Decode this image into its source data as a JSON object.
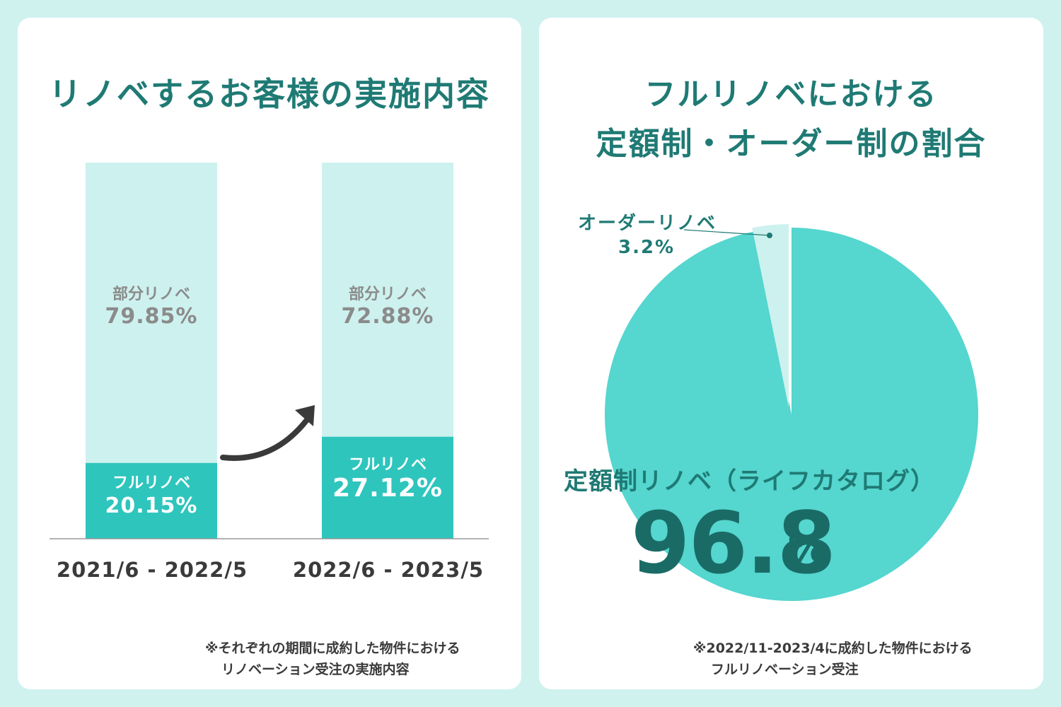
{
  "left": {
    "title": "リノベするお客様の実施内容",
    "note_line1": "※それぞれの期間に成約した物件における",
    "note_line2": "リノベーション受注の実施内容"
  },
  "right": {
    "title_line1": "フルリノベにおける",
    "title_line2": "定額制・オーダー制の割合",
    "note_line1": "※2022/11-2023/4に成約した物件における",
    "note_line2": "フルリノベーション受注"
  },
  "colors": {
    "partial": "#cdf1ee",
    "full": "#2ec5bd",
    "pie_main": "#55d6cf",
    "pie_small": "#cdf1ee",
    "title": "#1f7a74",
    "arrow": "#3a3a3a"
  },
  "chart_data": [
    {
      "type": "bar",
      "stacked": true,
      "title": "リノベするお客様の実施内容",
      "categories": [
        "2021/6 - 2022/5",
        "2022/6 - 2023/5"
      ],
      "ylim": [
        0,
        100
      ],
      "series": [
        {
          "name": "フルリノベ",
          "values": [
            20.15,
            27.12
          ],
          "labels": [
            "20.15%",
            "27.12%"
          ]
        },
        {
          "name": "部分リノベ",
          "values": [
            79.85,
            72.88
          ],
          "labels": [
            "79.85%",
            "72.88%"
          ]
        }
      ]
    },
    {
      "type": "pie",
      "title": "フルリノベにおける定額制・オーダー制の割合",
      "slices": [
        {
          "name": "定額制リノベ（ライフカタログ）",
          "value": 96.8,
          "value_text": "96.8",
          "unit": "%"
        },
        {
          "name": "オーダーリノベ",
          "value": 3.2,
          "label": "3.2%"
        }
      ]
    }
  ]
}
